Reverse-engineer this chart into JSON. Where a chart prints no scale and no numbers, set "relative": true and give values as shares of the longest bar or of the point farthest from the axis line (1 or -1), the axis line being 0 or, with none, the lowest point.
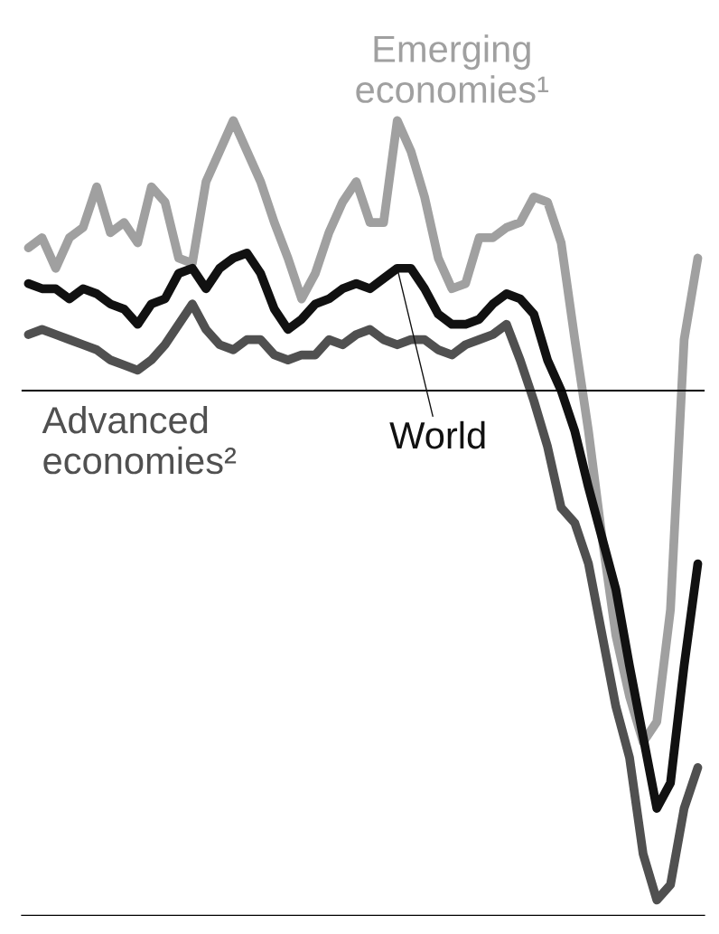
{
  "chart_data": {
    "type": "line",
    "relative": true,
    "grid": false,
    "legend": false,
    "categories": [
      null,
      null,
      null,
      null,
      null,
      null,
      null,
      null,
      null,
      null,
      null,
      null,
      null,
      null,
      null,
      null,
      null,
      null,
      null,
      null,
      null,
      null,
      null,
      null,
      null,
      null,
      null,
      null,
      null,
      null,
      null,
      null,
      null,
      null,
      null,
      null,
      null,
      null,
      null,
      null,
      null,
      null,
      null,
      null,
      null,
      null,
      null,
      null,
      null,
      null
    ],
    "series": [
      {
        "name": "Emerging economies¹",
        "color": "#a0a0a0",
        "values": [
          0.28,
          0.3,
          0.24,
          0.3,
          0.32,
          0.4,
          0.31,
          0.33,
          0.29,
          0.4,
          0.37,
          0.26,
          0.25,
          0.41,
          0.47,
          0.53,
          0.47,
          0.41,
          0.33,
          0.26,
          0.18,
          0.23,
          0.31,
          0.37,
          0.41,
          0.33,
          0.33,
          0.53,
          0.47,
          0.38,
          0.26,
          0.2,
          0.21,
          0.3,
          0.3,
          0.32,
          0.33,
          0.38,
          0.37,
          0.29,
          0.1,
          -0.08,
          -0.29,
          -0.48,
          -0.6,
          -0.69,
          -0.65,
          -0.43,
          0.1,
          0.26
        ]
      },
      {
        "name": "World",
        "color": "#111111",
        "values": [
          0.21,
          0.2,
          0.2,
          0.18,
          0.2,
          0.19,
          0.17,
          0.16,
          0.13,
          0.17,
          0.18,
          0.23,
          0.24,
          0.2,
          0.24,
          0.26,
          0.27,
          0.23,
          0.16,
          0.12,
          0.14,
          0.17,
          0.18,
          0.2,
          0.21,
          0.2,
          0.22,
          0.24,
          0.24,
          0.2,
          0.15,
          0.13,
          0.13,
          0.14,
          0.17,
          0.19,
          0.18,
          0.15,
          0.06,
          0.0,
          -0.08,
          -0.19,
          -0.29,
          -0.39,
          -0.54,
          -0.68,
          -0.82,
          -0.77,
          -0.54,
          -0.34
        ]
      },
      {
        "name": "Advanced economies²",
        "color": "#505050",
        "values": [
          0.11,
          0.12,
          0.11,
          0.1,
          0.09,
          0.08,
          0.06,
          0.05,
          0.04,
          0.06,
          0.09,
          0.13,
          0.17,
          0.12,
          0.09,
          0.08,
          0.1,
          0.1,
          0.07,
          0.06,
          0.07,
          0.07,
          0.1,
          0.09,
          0.11,
          0.12,
          0.1,
          0.09,
          0.1,
          0.1,
          0.08,
          0.07,
          0.09,
          0.1,
          0.11,
          0.13,
          0.06,
          -0.02,
          -0.11,
          -0.23,
          -0.26,
          -0.34,
          -0.48,
          -0.62,
          -0.72,
          -0.91,
          -1.0,
          -0.97,
          -0.82,
          -0.74
        ]
      }
    ]
  }
}
